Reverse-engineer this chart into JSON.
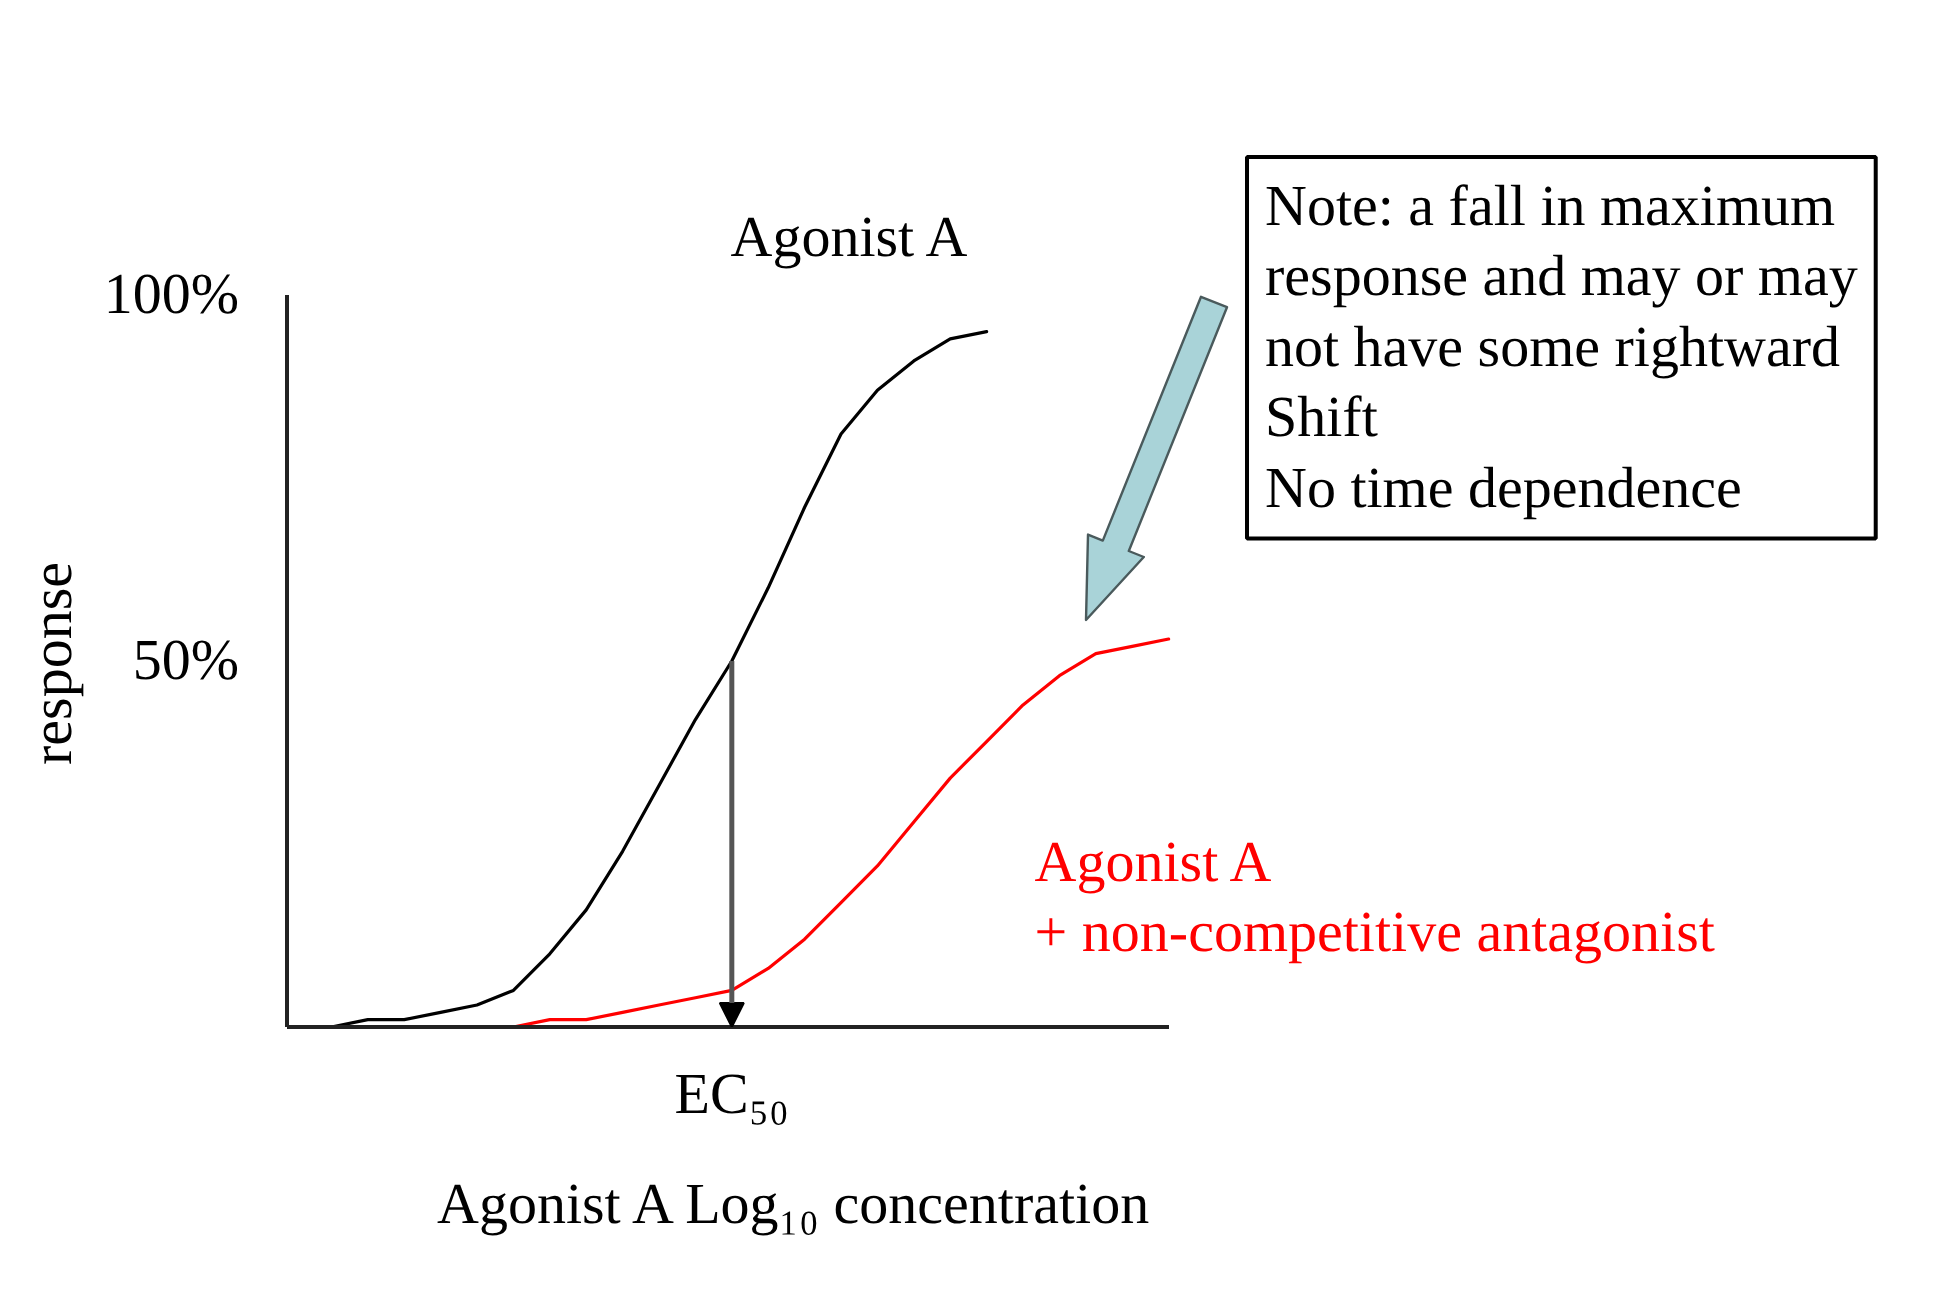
{
  "chart_data": {
    "type": "line",
    "xlabel": "Agonist A Log₁₀ concentration",
    "ylabel": "response",
    "categories": [
      null,
      null,
      null,
      null,
      null,
      null,
      null,
      null,
      null,
      null,
      null,
      null,
      "EC₅₀",
      null,
      null,
      null,
      null,
      null,
      null,
      null,
      null,
      null,
      null,
      null,
      null
    ],
    "ylim": [
      0,
      100
    ],
    "yticks": [
      {
        "value": 50,
        "label": "50%"
      },
      {
        "value": 100,
        "label": "100%"
      }
    ],
    "series": [
      {
        "name": "Agonist A",
        "color": "#000000",
        "values": [
          0,
          0,
          1,
          1,
          2,
          3,
          5,
          10,
          16,
          24,
          33,
          42,
          50,
          60,
          71,
          81,
          87,
          91,
          94,
          95,
          null,
          null,
          null,
          null,
          null
        ]
      },
      {
        "name": "Agonist A\n+ non-competitive antagonist",
        "color": "#ff0000",
        "values": [
          null,
          null,
          null,
          null,
          null,
          0,
          0,
          1,
          1,
          2,
          3,
          4,
          5,
          8,
          12,
          17,
          22,
          28,
          34,
          39,
          44,
          48,
          51,
          52,
          53
        ]
      }
    ],
    "annotations": [
      "Note: a fall in maximum\nresponse and may or may\nnot have some rightward\nShift\nNo time dependence"
    ]
  }
}
